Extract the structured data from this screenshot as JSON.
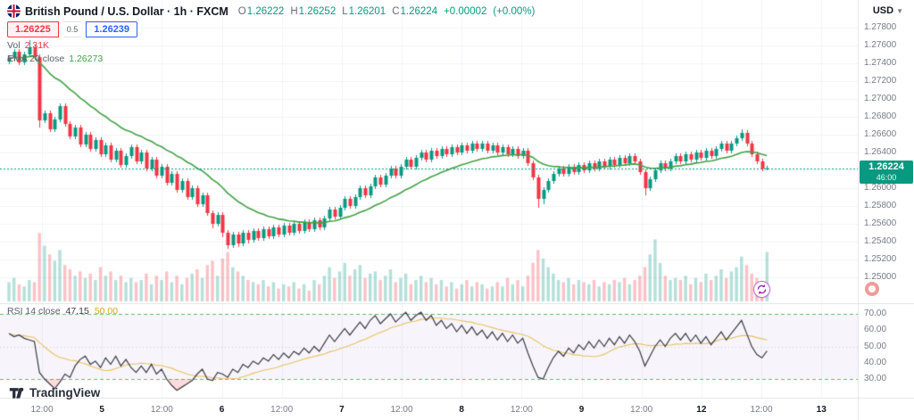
{
  "header": {
    "symbol_full": "British Pound / U.S. Dollar · 1h · FXCM",
    "ohlc": {
      "o_label": "O",
      "o": "1.26222",
      "h_label": "H",
      "h": "1.26252",
      "l_label": "L",
      "l": "1.26201",
      "c_label": "C",
      "c": "1.26224",
      "change": "+0.00002",
      "change_pct": "(+0.00%)"
    },
    "quote": {
      "sell": "1.26225",
      "spread": "0.5",
      "buy": "1.26239"
    },
    "volume_row": {
      "label": "Vol",
      "value": "2.31K"
    },
    "ema_row": {
      "label": "EMA 20 close",
      "value": "1.26273"
    }
  },
  "rsi_legend": {
    "label": "RSI 14 close",
    "value": "47.15",
    "ma_value": "50.00"
  },
  "price_badge": {
    "price": "1.26224",
    "countdown": "46:00"
  },
  "currency": "USD",
  "logo_text": "TradingView",
  "axes": {
    "price_labels": [
      "1.27800",
      "1.27600",
      "1.27400",
      "1.27200",
      "1.27000",
      "1.26800",
      "1.26600",
      "1.26400",
      "1.26200",
      "1.26000",
      "1.25800",
      "1.25600",
      "1.25400",
      "1.25200",
      "1.25000"
    ],
    "rsi_labels": [
      "70.00",
      "60.00",
      "50.00",
      "40.00",
      "30.00"
    ],
    "time_labels": [
      "12:00",
      "5",
      "12:00",
      "6",
      "12:00",
      "7",
      "12:00",
      "8",
      "12:00",
      "9",
      "12:00",
      "12",
      "12:00",
      "13"
    ]
  },
  "colors": {
    "up": "#089981",
    "down": "#f23645",
    "vol_up": "rgba(8,153,129,0.30)",
    "vol_down": "rgba(242,54,69,0.30)",
    "ema": "#43a047",
    "rsi_line": "#3a3a44",
    "rsi_ma": "#e8c062",
    "rsi_level": "#66bb6a",
    "rsi_mid": "#c9ccd6",
    "rsi_band_fill": "rgba(126,87,194,0.06)",
    "oversold_fill": "rgba(242,54,69,0.18)",
    "overbought_fill": "rgba(8,153,129,0.18)",
    "grid": "#f0f3fa",
    "pane_border": "#e0e3eb",
    "axis_text": "#787b86",
    "axis_text_dark": "#131722",
    "badge_bg": "#089981",
    "buy": "#2962ff",
    "sell": "#f23645"
  },
  "chart_data": {
    "type": "candlestick",
    "title": "British Pound / U.S. Dollar, 1h, FXCM",
    "ylim": [
      1.248,
      1.279
    ],
    "price_grid_step": 0.002,
    "last_close": 1.26224,
    "ema_period": 20,
    "rsi_period": 14,
    "rsi_levels": [
      70,
      50,
      30
    ],
    "candles": [
      [
        1.2742,
        1.2749,
        1.2739,
        1.2746
      ],
      [
        1.2746,
        1.2756,
        1.2743,
        1.2753
      ],
      [
        1.2753,
        1.2756,
        1.2738,
        1.2741
      ],
      [
        1.2741,
        1.2753,
        1.2738,
        1.275
      ],
      [
        1.275,
        1.2766,
        1.2747,
        1.2758
      ],
      [
        1.2758,
        1.2761,
        1.2744,
        1.2747
      ],
      [
        1.2747,
        1.275,
        1.2668,
        1.2676
      ],
      [
        1.2676,
        1.2687,
        1.2673,
        1.2684
      ],
      [
        1.2684,
        1.2687,
        1.2663,
        1.2666
      ],
      [
        1.2666,
        1.268,
        1.2663,
        1.2677
      ],
      [
        1.2677,
        1.2695,
        1.2674,
        1.2692
      ],
      [
        1.2692,
        1.2695,
        1.2669,
        1.2672
      ],
      [
        1.2672,
        1.2675,
        1.2655,
        1.2658
      ],
      [
        1.2658,
        1.2671,
        1.2655,
        1.2668
      ],
      [
        1.2668,
        1.2671,
        1.2646,
        1.2649
      ],
      [
        1.2649,
        1.2663,
        1.2646,
        1.266
      ],
      [
        1.266,
        1.2663,
        1.2641,
        1.2644
      ],
      [
        1.2644,
        1.2657,
        1.2641,
        1.2654
      ],
      [
        1.2654,
        1.2657,
        1.2635,
        1.2638
      ],
      [
        1.2638,
        1.2651,
        1.2635,
        1.2648
      ],
      [
        1.2648,
        1.2651,
        1.2629,
        1.2632
      ],
      [
        1.2632,
        1.2645,
        1.2629,
        1.2642
      ],
      [
        1.2642,
        1.2645,
        1.2623,
        1.2626
      ],
      [
        1.2626,
        1.2639,
        1.2623,
        1.2636
      ],
      [
        1.2636,
        1.2649,
        1.2633,
        1.2646
      ],
      [
        1.2646,
        1.2649,
        1.2627,
        1.263
      ],
      [
        1.263,
        1.2643,
        1.2627,
        1.264
      ],
      [
        1.264,
        1.2643,
        1.2619,
        1.2622
      ],
      [
        1.2622,
        1.2635,
        1.2619,
        1.2632
      ],
      [
        1.2632,
        1.2635,
        1.2611,
        1.2614
      ],
      [
        1.2614,
        1.2627,
        1.2611,
        1.2624
      ],
      [
        1.2624,
        1.2627,
        1.2603,
        1.2606
      ],
      [
        1.2606,
        1.2619,
        1.2603,
        1.2616
      ],
      [
        1.2616,
        1.2619,
        1.2595,
        1.2598
      ],
      [
        1.2598,
        1.2611,
        1.2595,
        1.2608
      ],
      [
        1.2608,
        1.2611,
        1.2587,
        1.259
      ],
      [
        1.259,
        1.2603,
        1.2587,
        1.26
      ],
      [
        1.26,
        1.2603,
        1.2579,
        1.2582
      ],
      [
        1.2582,
        1.2595,
        1.2579,
        1.2592
      ],
      [
        1.2592,
        1.2595,
        1.2569,
        1.2572
      ],
      [
        1.2572,
        1.2575,
        1.2555,
        1.256
      ],
      [
        1.256,
        1.2573,
        1.2557,
        1.257
      ],
      [
        1.257,
        1.2573,
        1.2545,
        1.255
      ],
      [
        1.255,
        1.2553,
        1.2532,
        1.2536
      ],
      [
        1.2536,
        1.2551,
        1.2533,
        1.2548
      ],
      [
        1.2548,
        1.2551,
        1.2534,
        1.2538
      ],
      [
        1.2538,
        1.2553,
        1.2535,
        1.255
      ],
      [
        1.255,
        1.2553,
        1.2538,
        1.2542
      ],
      [
        1.2542,
        1.2555,
        1.2539,
        1.2552
      ],
      [
        1.2552,
        1.2555,
        1.2541,
        1.2544
      ],
      [
        1.2544,
        1.2557,
        1.2541,
        1.2554
      ],
      [
        1.2554,
        1.2557,
        1.2543,
        1.2546
      ],
      [
        1.2546,
        1.2559,
        1.2543,
        1.2556
      ],
      [
        1.2556,
        1.2559,
        1.2545,
        1.2548
      ],
      [
        1.2548,
        1.2561,
        1.2545,
        1.2558
      ],
      [
        1.2558,
        1.2561,
        1.2547,
        1.255
      ],
      [
        1.255,
        1.2563,
        1.2547,
        1.256
      ],
      [
        1.256,
        1.2563,
        1.2549,
        1.2552
      ],
      [
        1.2552,
        1.2565,
        1.2549,
        1.2562
      ],
      [
        1.2562,
        1.2565,
        1.2551,
        1.2554
      ],
      [
        1.2554,
        1.2567,
        1.2551,
        1.2564
      ],
      [
        1.2564,
        1.2567,
        1.2553,
        1.2556
      ],
      [
        1.2556,
        1.2569,
        1.2553,
        1.2566
      ],
      [
        1.2566,
        1.2579,
        1.2563,
        1.2576
      ],
      [
        1.2576,
        1.2579,
        1.2565,
        1.2568
      ],
      [
        1.2568,
        1.2581,
        1.2565,
        1.2578
      ],
      [
        1.2578,
        1.2591,
        1.2575,
        1.2588
      ],
      [
        1.2588,
        1.2591,
        1.2577,
        1.258
      ],
      [
        1.258,
        1.2593,
        1.2577,
        1.259
      ],
      [
        1.259,
        1.2603,
        1.2587,
        1.26
      ],
      [
        1.26,
        1.2603,
        1.2589,
        1.2592
      ],
      [
        1.2592,
        1.2605,
        1.2589,
        1.2602
      ],
      [
        1.2602,
        1.2615,
        1.2599,
        1.2612
      ],
      [
        1.2612,
        1.2615,
        1.2601,
        1.2604
      ],
      [
        1.2604,
        1.2617,
        1.2601,
        1.2614
      ],
      [
        1.2614,
        1.2625,
        1.2611,
        1.2622
      ],
      [
        1.2622,
        1.2625,
        1.2611,
        1.2614
      ],
      [
        1.2614,
        1.2627,
        1.2611,
        1.2624
      ],
      [
        1.2624,
        1.2635,
        1.2621,
        1.2632
      ],
      [
        1.2632,
        1.2635,
        1.2621,
        1.2624
      ],
      [
        1.2624,
        1.2637,
        1.2621,
        1.2634
      ],
      [
        1.2634,
        1.2643,
        1.2631,
        1.264
      ],
      [
        1.264,
        1.2643,
        1.2629,
        1.2632
      ],
      [
        1.2632,
        1.2645,
        1.2629,
        1.2642
      ],
      [
        1.2642,
        1.2645,
        1.2633,
        1.2636
      ],
      [
        1.2636,
        1.2647,
        1.2633,
        1.2644
      ],
      [
        1.2644,
        1.2647,
        1.2635,
        1.2638
      ],
      [
        1.2638,
        1.2649,
        1.2635,
        1.2646
      ],
      [
        1.2646,
        1.2649,
        1.2637,
        1.264
      ],
      [
        1.264,
        1.2651,
        1.2637,
        1.2648
      ],
      [
        1.2648,
        1.2651,
        1.2639,
        1.2642
      ],
      [
        1.2642,
        1.2653,
        1.2639,
        1.265
      ],
      [
        1.265,
        1.2653,
        1.2641,
        1.2644
      ],
      [
        1.2644,
        1.2653,
        1.2641,
        1.265
      ],
      [
        1.265,
        1.2653,
        1.2639,
        1.2642
      ],
      [
        1.2642,
        1.2651,
        1.2639,
        1.2648
      ],
      [
        1.2648,
        1.2651,
        1.2637,
        1.264
      ],
      [
        1.264,
        1.2649,
        1.2637,
        1.2646
      ],
      [
        1.2646,
        1.2649,
        1.2635,
        1.2638
      ],
      [
        1.2638,
        1.2647,
        1.2635,
        1.2644
      ],
      [
        1.2644,
        1.2647,
        1.2633,
        1.2636
      ],
      [
        1.2636,
        1.2645,
        1.2633,
        1.2642
      ],
      [
        1.2642,
        1.2645,
        1.2625,
        1.2628
      ],
      [
        1.2628,
        1.2631,
        1.2609,
        1.2612
      ],
      [
        1.2612,
        1.2615,
        1.2578,
        1.2588
      ],
      [
        1.2588,
        1.2601,
        1.2582,
        1.2598
      ],
      [
        1.2598,
        1.2611,
        1.2595,
        1.2608
      ],
      [
        1.2608,
        1.2619,
        1.2605,
        1.2616
      ],
      [
        1.2616,
        1.2625,
        1.2613,
        1.2622
      ],
      [
        1.2622,
        1.2625,
        1.2613,
        1.2616
      ],
      [
        1.2616,
        1.2627,
        1.2613,
        1.2624
      ],
      [
        1.2624,
        1.2627,
        1.2615,
        1.2618
      ],
      [
        1.2618,
        1.2629,
        1.2615,
        1.2626
      ],
      [
        1.2626,
        1.2629,
        1.2617,
        1.262
      ],
      [
        1.262,
        1.2631,
        1.2617,
        1.2628
      ],
      [
        1.2628,
        1.2631,
        1.2619,
        1.2622
      ],
      [
        1.2622,
        1.2633,
        1.2619,
        1.263
      ],
      [
        1.263,
        1.2633,
        1.2621,
        1.2624
      ],
      [
        1.2624,
        1.2635,
        1.2621,
        1.2632
      ],
      [
        1.2632,
        1.2635,
        1.2623,
        1.2626
      ],
      [
        1.2626,
        1.2637,
        1.2623,
        1.2634
      ],
      [
        1.2634,
        1.2637,
        1.2625,
        1.2628
      ],
      [
        1.2628,
        1.2639,
        1.2625,
        1.2636
      ],
      [
        1.2636,
        1.2639,
        1.2627,
        1.263
      ],
      [
        1.263,
        1.2633,
        1.2615,
        1.2618
      ],
      [
        1.2618,
        1.2621,
        1.2592,
        1.26
      ],
      [
        1.26,
        1.2613,
        1.2597,
        1.261
      ],
      [
        1.261,
        1.2623,
        1.2607,
        1.262
      ],
      [
        1.262,
        1.2631,
        1.2617,
        1.2628
      ],
      [
        1.2628,
        1.2631,
        1.2619,
        1.2622
      ],
      [
        1.2622,
        1.2633,
        1.2619,
        1.263
      ],
      [
        1.263,
        1.2639,
        1.2627,
        1.2636
      ],
      [
        1.2636,
        1.2639,
        1.2627,
        1.263
      ],
      [
        1.263,
        1.2641,
        1.2627,
        1.2638
      ],
      [
        1.2638,
        1.2641,
        1.2629,
        1.2632
      ],
      [
        1.2632,
        1.2643,
        1.2629,
        1.264
      ],
      [
        1.264,
        1.2643,
        1.2631,
        1.2634
      ],
      [
        1.2634,
        1.2645,
        1.2631,
        1.2642
      ],
      [
        1.2642,
        1.2645,
        1.2633,
        1.2636
      ],
      [
        1.2636,
        1.2647,
        1.2633,
        1.2644
      ],
      [
        1.2644,
        1.2653,
        1.2641,
        1.265
      ],
      [
        1.265,
        1.2653,
        1.2639,
        1.2642
      ],
      [
        1.2642,
        1.2653,
        1.2639,
        1.265
      ],
      [
        1.265,
        1.2659,
        1.2647,
        1.2656
      ],
      [
        1.2656,
        1.2666,
        1.2653,
        1.2662
      ],
      [
        1.2662,
        1.2665,
        1.2647,
        1.265
      ],
      [
        1.265,
        1.2653,
        1.2635,
        1.2638
      ],
      [
        1.2638,
        1.2641,
        1.2627,
        1.263
      ],
      [
        1.263,
        1.2633,
        1.2619,
        1.2622
      ],
      [
        1.26222,
        1.26252,
        1.26201,
        1.26224
      ]
    ],
    "volumes": [
      0.9,
      1.1,
      0.8,
      0.7,
      1.0,
      0.9,
      3.2,
      2.6,
      2.2,
      1.9,
      2.4,
      1.7,
      1.5,
      1.2,
      1.4,
      1.1,
      1.3,
      1.0,
      1.6,
      1.2,
      1.4,
      1.0,
      1.2,
      0.9,
      1.1,
      0.9,
      1.0,
      1.3,
      0.8,
      1.2,
      1.0,
      1.4,
      0.9,
      1.2,
      0.8,
      1.1,
      1.3,
      1.5,
      1.1,
      1.7,
      1.9,
      1.2,
      2.0,
      2.3,
      1.6,
      1.4,
      1.2,
      1.0,
      0.9,
      0.8,
      1.0,
      0.7,
      0.9,
      0.6,
      0.8,
      0.7,
      0.9,
      0.6,
      0.8,
      0.5,
      1.0,
      0.8,
      1.2,
      1.6,
      1.1,
      1.4,
      1.8,
      1.2,
      1.5,
      1.7,
      1.1,
      1.3,
      1.4,
      1.0,
      1.2,
      1.5,
      0.9,
      1.1,
      1.3,
      0.8,
      1.0,
      1.2,
      0.9,
      1.1,
      0.8,
      1.0,
      0.7,
      0.9,
      0.6,
      0.8,
      1.0,
      0.7,
      0.9,
      0.8,
      0.6,
      0.7,
      0.9,
      0.7,
      1.1,
      0.8,
      1.0,
      0.7,
      1.2,
      1.8,
      2.4,
      2.0,
      1.6,
      1.3,
      1.0,
      0.9,
      1.1,
      0.8,
      1.0,
      0.9,
      0.8,
      1.0,
      0.7,
      0.9,
      0.8,
      1.0,
      0.9,
      1.1,
      0.8,
      1.0,
      1.2,
      1.6,
      2.2,
      2.9,
      1.8,
      1.2,
      1.0,
      1.1,
      1.0,
      1.2,
      0.8,
      1.1,
      0.9,
      1.3,
      1.0,
      1.2,
      1.5,
      1.1,
      1.4,
      1.6,
      2.1,
      1.7,
      1.3,
      1.1,
      0.9,
      2.31
    ],
    "rsi": [
      58,
      56,
      57,
      55,
      54,
      53,
      34,
      30,
      27,
      24,
      28,
      33,
      31,
      38,
      42,
      44,
      39,
      41,
      37,
      43,
      39,
      44,
      38,
      42,
      37,
      34,
      38,
      34,
      39,
      33,
      36,
      30,
      26,
      23,
      25,
      27,
      29,
      33,
      36,
      30,
      29,
      34,
      33,
      31,
      36,
      34,
      39,
      37,
      41,
      39,
      43,
      41,
      45,
      42,
      46,
      43,
      47,
      45,
      49,
      46,
      50,
      47,
      52,
      57,
      53,
      57,
      61,
      57,
      61,
      65,
      61,
      66,
      69,
      64,
      67,
      70,
      65,
      68,
      71,
      66,
      69,
      71,
      66,
      69,
      63,
      66,
      61,
      64,
      59,
      63,
      58,
      62,
      57,
      60,
      55,
      59,
      54,
      58,
      53,
      57,
      52,
      55,
      46,
      38,
      31,
      30,
      37,
      43,
      47,
      44,
      49,
      46,
      51,
      48,
      53,
      49,
      54,
      50,
      55,
      51,
      56,
      52,
      57,
      53,
      47,
      38,
      44,
      50,
      54,
      50,
      55,
      58,
      54,
      58,
      53,
      57,
      52,
      56,
      51,
      55,
      59,
      54,
      58,
      62,
      66,
      58,
      50,
      45,
      43,
      47.15
    ]
  }
}
